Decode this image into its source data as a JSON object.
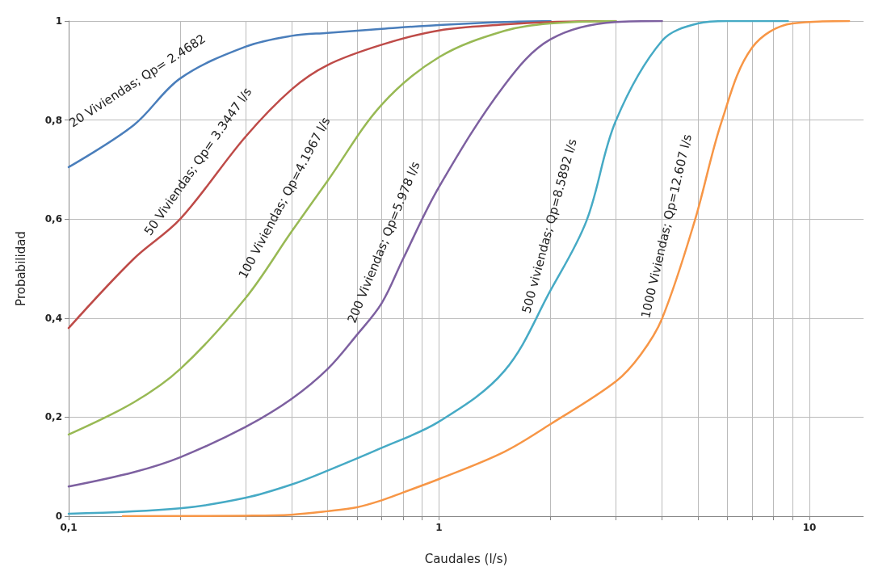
{
  "chart_data": {
    "type": "line",
    "xlabel": "Caudales (l/s)",
    "ylabel": "Probabilidad",
    "log": "x",
    "grid": true,
    "marker": "none",
    "line_style": "solid",
    "xlim": [
      0.1,
      14
    ],
    "xticks": [
      {
        "value": 0.1,
        "label": "0,1"
      },
      {
        "value": 0.2,
        "label": null
      },
      {
        "value": 0.3,
        "label": null
      },
      {
        "value": 0.4,
        "label": null
      },
      {
        "value": 0.5,
        "label": null
      },
      {
        "value": 0.6,
        "label": null
      },
      {
        "value": 0.7,
        "label": null
      },
      {
        "value": 0.8,
        "label": null
      },
      {
        "value": 0.9,
        "label": null
      },
      1,
      {
        "value": 2,
        "label": null
      },
      {
        "value": 3,
        "label": null
      },
      {
        "value": 4,
        "label": null
      },
      {
        "value": 5,
        "label": null
      },
      {
        "value": 6,
        "label": null
      },
      {
        "value": 7,
        "label": null
      },
      {
        "value": 8,
        "label": null
      },
      {
        "value": 9,
        "label": null
      },
      10
    ],
    "ylim": [
      0,
      1
    ],
    "yticks": [
      0,
      {
        "value": 0.2,
        "label": "0,2"
      },
      {
        "value": 0.4,
        "label": "0,4"
      },
      {
        "value": 0.6,
        "label": "0,6"
      },
      {
        "value": 0.8,
        "label": "0,8"
      },
      1
    ],
    "series": [
      {
        "color": "#4a7ebb",
        "x": [
          0.1,
          0.15,
          0.2,
          0.3,
          0.4,
          0.5,
          0.7,
          1,
          1.5,
          2
        ],
        "values": [
          0.705,
          0.79,
          0.884,
          0.948,
          0.97,
          0.976,
          0.984,
          0.992,
          0.998,
          1
        ]
      },
      {
        "color": "#be4b48",
        "x": [
          0.1,
          0.15,
          0.2,
          0.3,
          0.4,
          0.5,
          0.7,
          1,
          1.5,
          2,
          3
        ],
        "values": [
          0.38,
          0.52,
          0.6,
          0.766,
          0.862,
          0.911,
          0.952,
          0.981,
          0.993,
          0.998,
          1
        ]
      },
      {
        "color": "#98b954",
        "x": [
          0.1,
          0.15,
          0.2,
          0.3,
          0.4,
          0.5,
          0.7,
          1,
          1.5,
          2,
          3
        ],
        "values": [
          0.165,
          0.23,
          0.297,
          0.44,
          0.575,
          0.677,
          0.831,
          0.927,
          0.98,
          0.995,
          1
        ]
      },
      {
        "color": "#7d60a0",
        "x": [
          0.1,
          0.15,
          0.2,
          0.3,
          0.4,
          0.5,
          0.6,
          0.7,
          0.8,
          1,
          1.5,
          2,
          3,
          4
        ],
        "values": [
          0.06,
          0.089,
          0.119,
          0.18,
          0.237,
          0.297,
          0.366,
          0.43,
          0.52,
          0.665,
          0.87,
          0.963,
          0.998,
          1
        ]
      },
      {
        "color": "#46aac5",
        "x": [
          0.1,
          0.2,
          0.3,
          0.4,
          0.5,
          0.7,
          1,
          1.5,
          2,
          2.5,
          3,
          4,
          5,
          6,
          8.75
        ],
        "values": [
          0.005,
          0.016,
          0.037,
          0.064,
          0.092,
          0.138,
          0.191,
          0.293,
          0.456,
          0.596,
          0.798,
          0.96,
          0.995,
          1,
          1
        ]
      },
      {
        "color": "#f79646",
        "x": [
          0.14,
          0.3,
          0.4,
          0.5,
          0.6,
          0.7,
          0.8,
          1,
          1.5,
          2,
          3,
          3.5,
          4,
          4.9,
          5.8,
          7,
          9,
          12.8
        ],
        "values": [
          0,
          0.001,
          0.003,
          0.01,
          0.018,
          0.032,
          0.048,
          0.075,
          0.13,
          0.186,
          0.272,
          0.326,
          0.399,
          0.596,
          0.798,
          0.946,
          0.995,
          1
        ]
      }
    ],
    "annotations": [
      "20 Viviendas; Qp= 2.4682",
      "50 Viviendas; Qp= 3.3447 l/s",
      "100 Viviendas; Qp=4.1967 l/s",
      "200 Viviendas; Qp=5.978 l/s",
      "500 viviendas; Qp=8.5892 l/s",
      "1000 Viviendas; Qp=12.607 l/s"
    ]
  }
}
